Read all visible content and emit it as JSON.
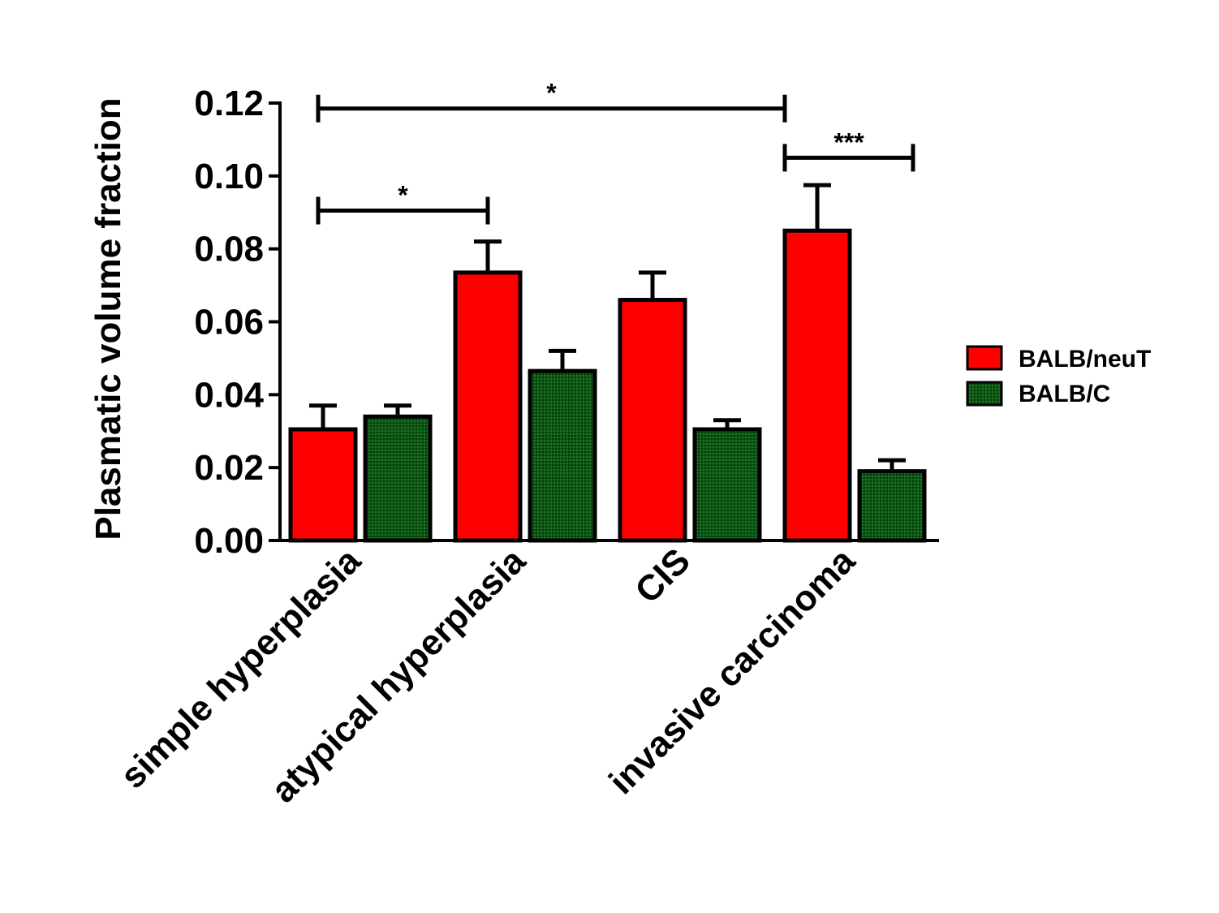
{
  "chart_data": {
    "type": "bar",
    "title": "",
    "xlabel": "",
    "ylabel": "Plasmatic volume fraction",
    "ylim": [
      0,
      0.12
    ],
    "yticks": [
      "0.00",
      "0.02",
      "0.04",
      "0.06",
      "0.08",
      "0.10",
      "0.12"
    ],
    "categories": [
      "simple hyperplasia",
      "atypical hyperplasia",
      "CIS",
      "invasive carcinoma"
    ],
    "series": [
      {
        "name": "BALB/neuT",
        "color": "#ff0000",
        "values": [
          0.0305,
          0.0735,
          0.066,
          0.085
        ],
        "errors": [
          0.0065,
          0.0085,
          0.0075,
          0.0125
        ]
      },
      {
        "name": "BALB/C",
        "color": "#006400",
        "values": [
          0.034,
          0.0465,
          0.0305,
          0.019
        ],
        "errors": [
          0.003,
          0.0055,
          0.0025,
          0.003
        ]
      }
    ],
    "legend_position": "right",
    "significance": [
      {
        "label": "*",
        "from": "simple hyperplasia",
        "to": "invasive carcinoma",
        "y": 0.1185
      },
      {
        "label": "*",
        "from": "simple hyperplasia",
        "to": "atypical hyperplasia",
        "y": 0.0905
      },
      {
        "label": "***",
        "from": "invasive carcinoma",
        "to": "invasive carcinoma",
        "y": 0.105
      }
    ]
  }
}
